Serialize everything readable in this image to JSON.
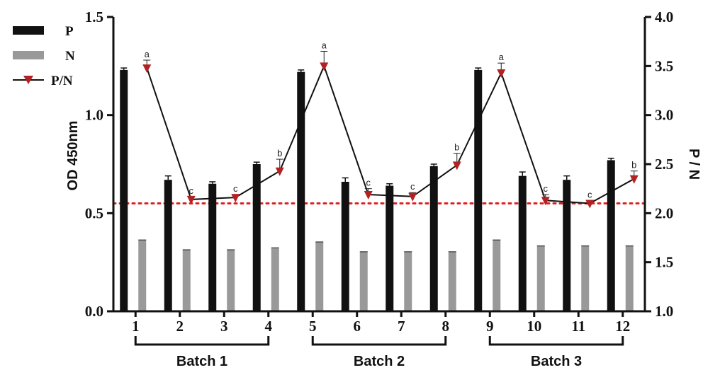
{
  "chart_data": {
    "type": "bar",
    "categories": [
      "1",
      "2",
      "3",
      "4",
      "5",
      "6",
      "7",
      "8",
      "9",
      "10",
      "11",
      "12"
    ],
    "series": [
      {
        "name": "P",
        "axis": "left",
        "kind": "bar",
        "color": "#111111",
        "values": [
          1.23,
          0.67,
          0.65,
          0.75,
          1.22,
          0.66,
          0.64,
          0.74,
          1.23,
          0.69,
          0.67,
          0.77
        ],
        "errors": [
          0.01,
          0.02,
          0.01,
          0.01,
          0.01,
          0.02,
          0.01,
          0.01,
          0.01,
          0.02,
          0.02,
          0.01
        ]
      },
      {
        "name": "N",
        "axis": "left",
        "kind": "bar",
        "color": "#999999",
        "values": [
          0.36,
          0.31,
          0.31,
          0.32,
          0.35,
          0.3,
          0.3,
          0.3,
          0.36,
          0.33,
          0.33,
          0.33
        ],
        "errors": [
          0.003,
          0.003,
          0.003,
          0.003,
          0.003,
          0.003,
          0.003,
          0.003,
          0.003,
          0.003,
          0.003,
          0.003
        ]
      },
      {
        "name": "P/N",
        "axis": "right",
        "kind": "line",
        "color": "#b22222",
        "values": [
          3.48,
          2.14,
          2.16,
          2.43,
          3.5,
          2.19,
          2.17,
          2.49,
          3.43,
          2.13,
          2.1,
          2.35
        ],
        "errors": [
          0.08,
          0.03,
          0.03,
          0.12,
          0.15,
          0.06,
          0.04,
          0.12,
          0.1,
          0.06,
          0.03,
          0.08
        ],
        "letters": [
          "a",
          "c",
          "c",
          "b",
          "a",
          "c",
          "c",
          "b",
          "a",
          "c",
          "c",
          "b"
        ]
      }
    ],
    "y_left": {
      "label": "OD 450nm",
      "range": [
        0.0,
        1.5
      ],
      "ticks": [
        "0.0",
        "0.5",
        "1.0",
        "1.5"
      ],
      "tick_values": [
        0.0,
        0.5,
        1.0,
        1.5
      ]
    },
    "y_right": {
      "label": "P / N",
      "range": [
        1.0,
        4.0
      ],
      "ticks": [
        "1.0",
        "1.5",
        "2.0",
        "2.5",
        "3.0",
        "3.5",
        "4.0"
      ],
      "tick_values": [
        1.0,
        1.5,
        2.0,
        2.5,
        3.0,
        3.5,
        4.0
      ]
    },
    "cutoff": {
      "value": 2.1,
      "axis": "right",
      "color": "#e02020",
      "style": "dotted"
    },
    "groups": [
      {
        "label": "Batch 1",
        "from": 1,
        "to": 4
      },
      {
        "label": "Batch 2",
        "from": 5,
        "to": 8
      },
      {
        "label": "Batch 3",
        "from": 9,
        "to": 12
      }
    ],
    "legend": {
      "position": "top-left",
      "items": [
        "P",
        "N",
        "P/N"
      ]
    },
    "grid": false
  }
}
